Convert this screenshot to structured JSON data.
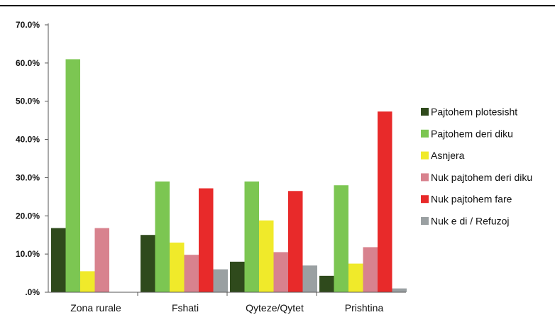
{
  "chart_data": {
    "type": "bar",
    "categories": [
      "Zona rurale",
      "Fshati",
      "Qyteze/Qytet",
      "Prishtina"
    ],
    "ylim": [
      0,
      70
    ],
    "yticks": [
      ".0%",
      "10.0%",
      "20.0%",
      "30.0%",
      "40.0%",
      "50.0%",
      "60.0%",
      "70.0%"
    ],
    "grid": false,
    "legend_position": "right",
    "series": [
      {
        "name": "Pajtohem plotesisht",
        "color": "#2f4a1c",
        "values": [
          16.8,
          15.0,
          8.0,
          4.3
        ]
      },
      {
        "name": "Pajtohem deri diku",
        "color": "#7cc652",
        "values": [
          61.0,
          29.0,
          29.0,
          28.0
        ]
      },
      {
        "name": "Asnjera",
        "color": "#f0ea2a",
        "values": [
          5.5,
          13.0,
          18.8,
          7.5
        ]
      },
      {
        "name": "Nuk pajtohem deri diku",
        "color": "#d8828e",
        "values": [
          16.8,
          9.8,
          10.5,
          11.8
        ]
      },
      {
        "name": "Nuk pajtohem fare",
        "color": "#e82a2a",
        "values": [
          0,
          27.2,
          26.5,
          47.3
        ]
      },
      {
        "name": "Nuk e di / Refuzoj",
        "color": "#9aa0a2",
        "values": [
          0,
          6.0,
          7.0,
          1.0
        ]
      }
    ]
  }
}
